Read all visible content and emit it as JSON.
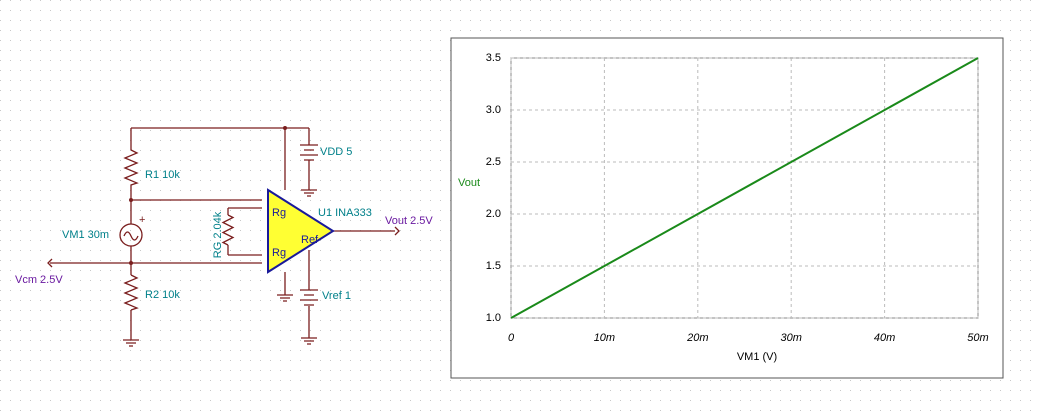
{
  "schematic": {
    "r1": "R1 10k",
    "r2": "R2 10k",
    "vm1": "VM1 30m",
    "rg": "RG 2.04k",
    "u1": "U1 INA333",
    "vdd": "VDD 5",
    "vref": "Vref 1",
    "vcm": "Vcm 2.5V",
    "vout": "Vout 2.5V",
    "pin_rg_top": "Rg",
    "pin_rg_bottom": "Rg",
    "pin_ref": "Ref",
    "plus": "+"
  },
  "chart_data": {
    "type": "line",
    "x_label": "VM1 (V)",
    "y_label": "Vout",
    "x": [
      0,
      0.05
    ],
    "series": [
      {
        "name": "Vout",
        "color": "#1a8a1a",
        "values": [
          1.0,
          3.5
        ]
      }
    ],
    "xlim": [
      0,
      0.05
    ],
    "xticks": [
      0,
      {
        "value": 0.01,
        "label": "10m"
      },
      {
        "value": 0.02,
        "label": "20m"
      },
      {
        "value": 0.03,
        "label": "30m"
      },
      {
        "value": 0.04,
        "label": "40m"
      },
      {
        "value": 0.05,
        "label": "50m"
      }
    ],
    "ylim": [
      1.0,
      3.5
    ],
    "yticks": [
      {
        "value": 1,
        "label": "1.0"
      },
      1.5,
      {
        "value": 2,
        "label": "2.0"
      },
      2.5,
      {
        "value": 3,
        "label": "3.0"
      },
      3.5
    ],
    "grid": true
  }
}
